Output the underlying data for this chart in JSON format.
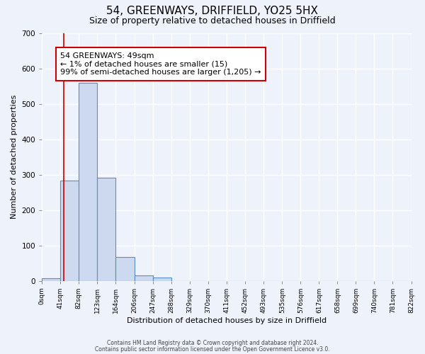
{
  "title": "54, GREENWAYS, DRIFFIELD, YO25 5HX",
  "subtitle": "Size of property relative to detached houses in Driffield",
  "xlabel": "Distribution of detached houses by size in Driffield",
  "ylabel": "Number of detached properties",
  "bin_edges": [
    0,
    41,
    82,
    123,
    164,
    206,
    247,
    288,
    329,
    370,
    411,
    452,
    493,
    535,
    576,
    617,
    658,
    699,
    740,
    781,
    822
  ],
  "bar_heights": [
    8,
    283,
    560,
    292,
    68,
    16,
    10,
    0,
    0,
    0,
    0,
    0,
    0,
    0,
    0,
    0,
    0,
    0,
    0,
    0
  ],
  "bar_color": "#ccd9ee",
  "bar_edge_color": "#5b8ec4",
  "red_line_x": 49,
  "ylim": [
    0,
    700
  ],
  "annotation_text": "54 GREENWAYS: 49sqm\n← 1% of detached houses are smaller (15)\n99% of semi-detached houses are larger (1,205) →",
  "annotation_box_color": "#ffffff",
  "annotation_box_edge_color": "#cc0000",
  "footer_line1": "Contains HM Land Registry data © Crown copyright and database right 2024.",
  "footer_line2": "Contains public sector information licensed under the Open Government Licence v3.0.",
  "background_color": "#eef2fa",
  "grid_color": "#ffffff",
  "title_fontsize": 11,
  "subtitle_fontsize": 9,
  "tick_label_fontsize": 6.5,
  "ylabel_fontsize": 8,
  "xlabel_fontsize": 8,
  "annotation_fontsize": 8,
  "yticks": [
    0,
    100,
    200,
    300,
    400,
    500,
    600,
    700
  ]
}
